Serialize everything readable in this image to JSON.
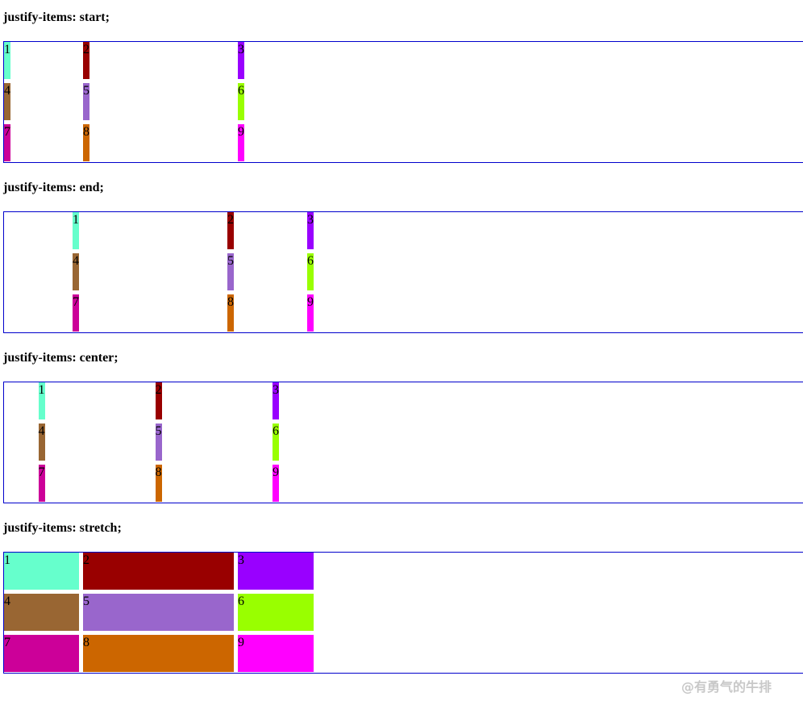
{
  "sections": [
    {
      "title": "justify-items: start;",
      "justify": "start"
    },
    {
      "title": "justify-items: end;",
      "justify": "end"
    },
    {
      "title": "justify-items: center;",
      "justify": "center"
    },
    {
      "title": "justify-items: stretch;",
      "justify": "stretch"
    }
  ],
  "items": [
    {
      "label": "1",
      "color": "#66ffcc"
    },
    {
      "label": "2",
      "color": "#990000"
    },
    {
      "label": "3",
      "color": "#9900ff"
    },
    {
      "label": "4",
      "color": "#996633"
    },
    {
      "label": "5",
      "color": "#9966cc"
    },
    {
      "label": "6",
      "color": "#99ff00"
    },
    {
      "label": "7",
      "color": "#cc0099"
    },
    {
      "label": "8",
      "color": "#cc6600"
    },
    {
      "label": "9",
      "color": "#ff00ff"
    }
  ],
  "watermark": "@有勇气的牛排"
}
